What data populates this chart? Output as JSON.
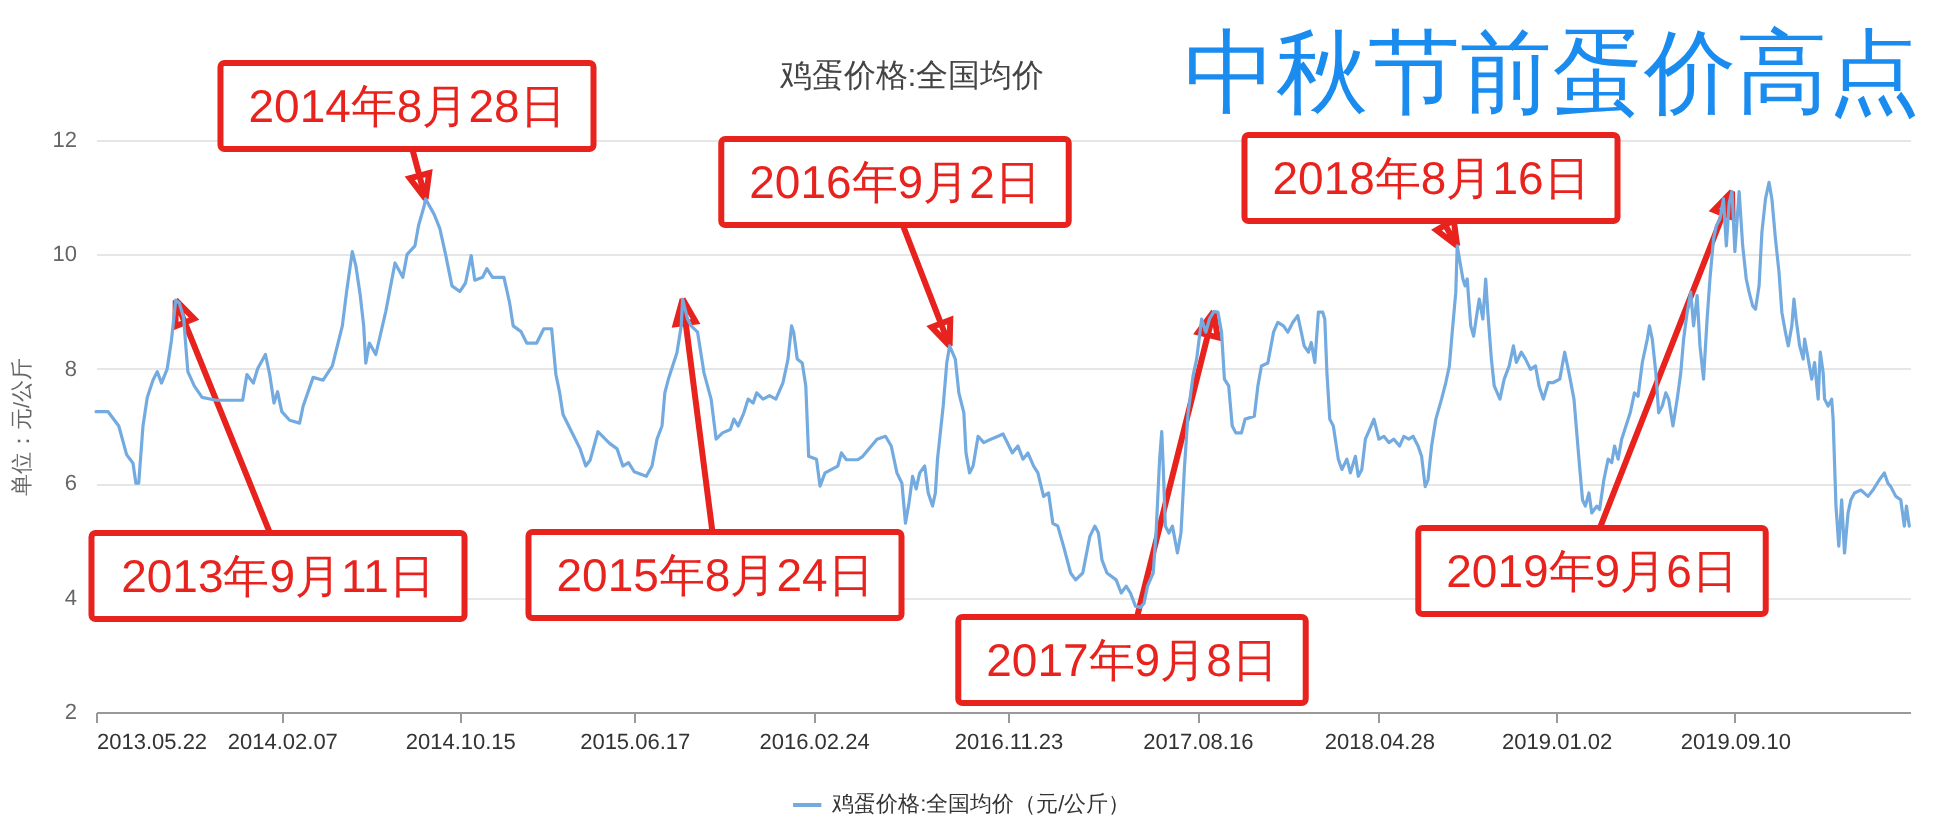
{
  "chart_data": {
    "type": "line",
    "title": "鸡蛋价格:全国均价",
    "ylabel": "单位：元/公斤",
    "legend": "bottom",
    "grid": "y",
    "xlim": [
      "2013-05-22",
      "2020-05-13"
    ],
    "xticks": [
      {
        "value": "2013-05-22",
        "label": "2013.05.22"
      },
      {
        "value": "2014-02-07",
        "label": "2014.02.07"
      },
      {
        "value": "2014-10-15",
        "label": "2014.10.15"
      },
      {
        "value": "2015-06-17",
        "label": "2015.06.17"
      },
      {
        "value": "2016-02-24",
        "label": "2016.02.24"
      },
      {
        "value": "2016-11-23",
        "label": "2016.11.23"
      },
      {
        "value": "2017-08-16",
        "label": "2017.08.16"
      },
      {
        "value": "2018-04-28",
        "label": "2018.04.28"
      },
      {
        "value": "2019-01-02",
        "label": "2019.01.02"
      },
      {
        "value": "2019-09-10",
        "label": "2019.09.10"
      }
    ],
    "ylim": [
      2,
      12
    ],
    "yticks": [
      2,
      4,
      6,
      8,
      10,
      12
    ],
    "series": [
      {
        "name": "鸡蛋价格:全国均价（元/公斤）",
        "color": "#73abe0",
        "x": [
          "2013-05-22",
          "2013-06-08",
          "2013-06-23",
          "2013-07-04",
          "2013-07-13",
          "2013-07-17",
          "2013-07-21",
          "2013-07-27",
          "2013-08-02",
          "2013-08-10",
          "2013-08-16",
          "2013-08-22",
          "2013-08-30",
          "2013-09-05",
          "2013-09-11",
          "2013-09-16",
          "2013-09-22",
          "2013-09-28",
          "2013-10-07",
          "2013-10-18",
          "2013-11-07",
          "2013-12-14",
          "2013-12-20",
          "2013-12-29",
          "2014-01-04",
          "2014-01-15",
          "2014-01-21",
          "2014-01-27",
          "2014-02-01",
          "2014-02-07",
          "2014-02-18",
          "2014-03-04",
          "2014-03-09",
          "2014-03-23",
          "2014-04-06",
          "2014-04-19",
          "2014-05-03",
          "2014-05-09",
          "2014-05-17",
          "2014-05-22",
          "2014-05-28",
          "2014-06-02",
          "2014-06-05",
          "2014-06-10",
          "2014-06-19",
          "2014-07-03",
          "2014-07-16",
          "2014-07-27",
          "2014-08-02",
          "2014-08-13",
          "2014-08-18",
          "2014-08-26",
          "2014-08-28",
          "2014-09-09",
          "2014-09-17",
          "2014-09-25",
          "2014-10-04",
          "2014-10-15",
          "2014-10-23",
          "2014-10-31",
          "2014-11-05",
          "2014-11-16",
          "2014-11-22",
          "2014-11-30",
          "2014-12-16",
          "2014-12-24",
          "2014-12-29",
          "2015-01-09",
          "2015-01-17",
          "2015-01-31",
          "2015-02-10",
          "2015-02-21",
          "2015-02-27",
          "2015-03-04",
          "2015-03-09",
          "2015-03-17",
          "2015-04-02",
          "2015-04-10",
          "2015-04-16",
          "2015-04-27",
          "2015-05-13",
          "2015-05-24",
          "2015-06-01",
          "2015-06-09",
          "2015-06-17",
          "2015-07-04",
          "2015-07-12",
          "2015-07-19",
          "2015-07-26",
          "2015-07-30",
          "2015-08-04",
          "2015-08-16",
          "2015-08-22",
          "2015-08-24",
          "2015-08-31",
          "2015-09-05",
          "2015-09-14",
          "2015-09-23",
          "2015-10-03",
          "2015-10-10",
          "2015-10-19",
          "2015-10-30",
          "2015-11-04",
          "2015-11-10",
          "2015-11-18",
          "2015-11-24",
          "2015-12-01",
          "2015-12-06",
          "2015-12-15",
          "2015-12-24",
          "2016-01-02",
          "2016-01-12",
          "2016-01-19",
          "2016-01-24",
          "2016-01-27",
          "2016-02-01",
          "2016-02-08",
          "2016-02-13",
          "2016-02-17",
          "2016-02-28",
          "2016-03-04",
          "2016-03-11",
          "2016-03-29",
          "2016-04-03",
          "2016-04-10",
          "2016-04-26",
          "2016-05-03",
          "2016-05-23",
          "2016-06-04",
          "2016-06-12",
          "2016-06-20",
          "2016-06-27",
          "2016-07-02",
          "2016-07-07",
          "2016-07-12",
          "2016-07-17",
          "2016-07-22",
          "2016-07-29",
          "2016-08-03",
          "2016-08-09",
          "2016-08-13",
          "2016-08-16",
          "2016-08-24",
          "2016-08-29",
          "2016-09-02",
          "2016-09-10",
          "2016-09-15",
          "2016-09-22",
          "2016-09-25",
          "2016-09-30",
          "2016-10-05",
          "2016-10-12",
          "2016-10-20",
          "2016-10-30",
          "2016-11-09",
          "2016-11-16",
          "2016-11-22",
          "2016-11-29",
          "2016-12-07",
          "2016-12-14",
          "2016-12-21",
          "2016-12-29",
          "2017-01-04",
          "2017-01-12",
          "2017-01-19",
          "2017-01-25",
          "2017-02-01",
          "2017-02-09",
          "2017-02-19",
          "2017-02-26",
          "2017-03-08",
          "2017-03-18",
          "2017-03-25",
          "2017-03-30",
          "2017-04-04",
          "2017-04-11",
          "2017-04-24",
          "2017-05-01",
          "2017-05-08",
          "2017-05-14",
          "2017-05-21",
          "2017-05-28",
          "2017-06-02",
          "2017-06-07",
          "2017-06-15",
          "2017-06-19",
          "2017-06-24",
          "2017-06-27",
          "2017-06-29",
          "2017-07-02",
          "2017-07-07",
          "2017-07-12",
          "2017-07-19",
          "2017-07-24",
          "2017-07-29",
          "2017-08-03",
          "2017-08-10",
          "2017-08-15",
          "2017-08-22",
          "2017-08-28",
          "2017-09-02",
          "2017-09-08",
          "2017-09-14",
          "2017-09-19",
          "2017-09-23",
          "2017-09-29",
          "2017-10-04",
          "2017-10-09",
          "2017-10-17",
          "2017-10-22",
          "2017-11-04",
          "2017-11-09",
          "2017-11-14",
          "2017-11-23",
          "2017-12-01",
          "2017-12-07",
          "2017-12-15",
          "2017-12-21",
          "2017-12-28",
          "2018-01-04",
          "2018-01-09",
          "2018-01-13",
          "2018-01-19",
          "2018-01-23",
          "2018-01-28",
          "2018-02-02",
          "2018-02-08",
          "2018-02-11",
          "2018-02-14",
          "2018-02-18",
          "2018-02-23",
          "2018-03-02",
          "2018-03-07",
          "2018-03-14",
          "2018-03-19",
          "2018-03-26",
          "2018-03-30",
          "2018-04-04",
          "2018-04-09",
          "2018-04-15",
          "2018-04-21",
          "2018-04-28",
          "2018-05-05",
          "2018-05-12",
          "2018-05-19",
          "2018-05-27",
          "2018-06-02",
          "2018-06-09",
          "2018-06-15",
          "2018-06-22",
          "2018-06-27",
          "2018-07-02",
          "2018-07-06",
          "2018-07-11",
          "2018-07-17",
          "2018-07-25",
          "2018-07-31",
          "2018-08-05",
          "2018-08-09",
          "2018-08-14",
          "2018-08-16",
          "2018-08-24",
          "2018-08-27",
          "2018-08-30",
          "2018-09-04",
          "2018-09-08",
          "2018-09-13",
          "2018-09-16",
          "2018-09-21",
          "2018-09-25",
          "2018-09-28",
          "2018-10-03",
          "2018-10-07",
          "2018-10-15",
          "2018-10-21",
          "2018-10-28",
          "2018-11-03",
          "2018-11-07",
          "2018-11-14",
          "2018-11-20",
          "2018-11-27",
          "2018-12-04",
          "2018-12-09",
          "2018-12-15",
          "2018-12-22",
          "2018-12-29",
          "2019-01-07",
          "2019-01-14",
          "2019-01-20",
          "2019-01-27",
          "2019-02-03",
          "2019-02-08",
          "2019-02-12",
          "2019-02-17",
          "2019-02-21",
          "2019-02-28",
          "2019-03-04",
          "2019-03-10",
          "2019-03-16",
          "2019-03-21",
          "2019-03-25",
          "2019-03-30",
          "2019-04-04",
          "2019-04-10",
          "2019-04-16",
          "2019-04-22",
          "2019-04-27",
          "2019-05-03",
          "2019-05-10",
          "2019-05-13",
          "2019-05-17",
          "2019-05-22",
          "2019-05-26",
          "2019-05-31",
          "2019-06-05",
          "2019-06-09",
          "2019-06-15",
          "2019-06-21",
          "2019-06-26",
          "2019-06-30",
          "2019-07-05",
          "2019-07-10",
          "2019-07-14",
          "2019-07-19",
          "2019-07-23",
          "2019-07-28",
          "2019-08-02",
          "2019-08-06",
          "2019-08-11",
          "2019-08-15",
          "2019-08-20",
          "2019-08-25",
          "2019-08-29",
          "2019-09-02",
          "2019-09-06",
          "2019-09-10",
          "2019-09-16",
          "2019-09-21",
          "2019-09-26",
          "2019-09-30",
          "2019-10-05",
          "2019-10-09",
          "2019-10-14",
          "2019-10-18",
          "2019-10-23",
          "2019-10-28",
          "2019-11-01",
          "2019-11-06",
          "2019-11-11",
          "2019-11-15",
          "2019-11-20",
          "2019-11-24",
          "2019-11-29",
          "2019-12-02",
          "2019-12-05",
          "2019-12-10",
          "2019-12-15",
          "2019-12-17",
          "2019-12-22",
          "2019-12-27",
          "2019-12-31",
          "2020-01-05",
          "2020-01-08",
          "2020-01-12",
          "2020-01-14",
          "2020-01-19",
          "2020-01-24",
          "2020-01-26",
          "2020-01-30",
          "2020-02-03",
          "2020-02-07",
          "2020-02-11",
          "2020-02-16",
          "2020-02-20",
          "2020-02-25",
          "2020-03-05",
          "2020-03-15",
          "2020-03-23",
          "2020-03-31",
          "2020-04-07",
          "2020-04-12",
          "2020-04-16",
          "2020-04-23",
          "2020-04-30",
          "2020-05-05",
          "2020-05-08",
          "2020-05-12"
        ],
        "values": [
          7.25,
          7.25,
          7.0,
          6.5,
          6.35,
          6.0,
          6.0,
          7.0,
          7.5,
          7.8,
          7.95,
          7.75,
          8.0,
          8.5,
          9.2,
          9.15,
          8.9,
          7.95,
          7.7,
          7.5,
          7.45,
          7.45,
          7.9,
          7.75,
          8.0,
          8.25,
          7.9,
          7.4,
          7.6,
          7.25,
          7.1,
          7.05,
          7.35,
          7.85,
          7.8,
          8.05,
          8.75,
          9.35,
          10.05,
          9.8,
          9.3,
          8.75,
          8.1,
          8.45,
          8.25,
          9.0,
          9.85,
          9.6,
          10.0,
          10.15,
          10.5,
          10.85,
          10.97,
          10.7,
          10.45,
          10.0,
          9.45,
          9.35,
          9.5,
          9.98,
          9.55,
          9.6,
          9.75,
          9.6,
          9.6,
          9.15,
          8.75,
          8.65,
          8.45,
          8.45,
          8.7,
          8.7,
          7.9,
          7.6,
          7.2,
          7.0,
          6.6,
          6.3,
          6.4,
          6.9,
          6.7,
          6.6,
          6.3,
          6.36,
          6.2,
          6.12,
          6.3,
          6.77,
          7.0,
          7.58,
          7.82,
          8.28,
          8.75,
          9.22,
          8.87,
          8.75,
          8.64,
          7.93,
          7.47,
          6.77,
          6.88,
          6.94,
          7.12,
          7.0,
          7.23,
          7.47,
          7.4,
          7.58,
          7.47,
          7.53,
          7.47,
          7.76,
          8.17,
          8.75,
          8.64,
          8.17,
          8.1,
          7.7,
          6.47,
          6.42,
          5.95,
          6.18,
          6.3,
          6.53,
          6.41,
          6.41,
          6.47,
          6.77,
          6.82,
          6.65,
          6.18,
          6.0,
          5.3,
          5.66,
          6.12,
          5.9,
          6.18,
          6.3,
          5.83,
          5.6,
          5.83,
          6.42,
          7.35,
          8.1,
          8.4,
          8.17,
          7.58,
          7.23,
          6.53,
          6.18,
          6.3,
          6.82,
          6.71,
          6.77,
          6.82,
          6.86,
          6.71,
          6.53,
          6.65,
          6.42,
          6.53,
          6.3,
          6.18,
          5.77,
          5.83,
          5.3,
          5.25,
          4.9,
          4.43,
          4.31,
          4.43,
          5.07,
          5.25,
          5.13,
          4.66,
          4.43,
          4.31,
          4.08,
          4.2,
          4.08,
          3.85,
          3.83,
          3.9,
          4.2,
          4.43,
          5.13,
          6.42,
          6.9,
          6.3,
          5.25,
          5.13,
          5.25,
          4.78,
          5.13,
          6.3,
          7.23,
          7.88,
          8.17,
          8.87,
          8.64,
          8.87,
          9.0,
          8.99,
          8.64,
          7.82,
          7.7,
          7.0,
          6.88,
          6.88,
          7.12,
          7.17,
          7.7,
          8.05,
          8.1,
          8.64,
          8.81,
          8.75,
          8.64,
          8.81,
          8.93,
          8.64,
          8.4,
          8.29,
          8.46,
          8.11,
          8.99,
          8.99,
          8.87,
          7.93,
          7.12,
          7.0,
          6.42,
          6.24,
          6.42,
          6.18,
          6.47,
          6.12,
          6.24,
          6.77,
          6.94,
          7.12,
          6.77,
          6.82,
          6.71,
          6.77,
          6.65,
          6.82,
          6.77,
          6.82,
          6.65,
          6.47,
          5.94,
          6.06,
          6.65,
          7.12,
          7.47,
          7.76,
          8.05,
          8.64,
          9.34,
          10.15,
          9.57,
          9.45,
          9.57,
          8.75,
          8.57,
          8.99,
          9.22,
          8.87,
          9.57,
          8.99,
          8.17,
          7.7,
          7.47,
          7.82,
          8.05,
          8.4,
          8.11,
          8.29,
          8.17,
          7.99,
          8.05,
          7.7,
          7.47,
          7.76,
          7.76,
          7.82,
          8.29,
          7.93,
          7.47,
          6.42,
          5.71,
          5.6,
          5.83,
          5.48,
          5.6,
          5.54,
          6.06,
          6.42,
          6.36,
          6.65,
          6.42,
          6.77,
          7.0,
          7.23,
          7.58,
          7.52,
          8.11,
          8.52,
          8.75,
          8.52,
          7.93,
          7.23,
          7.35,
          7.58,
          7.47,
          7.0,
          7.47,
          7.93,
          8.52,
          8.99,
          9.34,
          8.75,
          9.28,
          8.4,
          7.82,
          8.87,
          9.57,
          10.27,
          10.5,
          10.62,
          10.97,
          10.15,
          10.9,
          11.1,
          10.05,
          11.1,
          10.15,
          9.57,
          9.34,
          9.1,
          9.04,
          9.45,
          10.39,
          10.97,
          11.26,
          10.97,
          10.27,
          9.69,
          8.99,
          8.64,
          8.4,
          8.75,
          9.22,
          8.87,
          8.4,
          8.17,
          8.52,
          8.17,
          7.82,
          8.11,
          7.47,
          8.29,
          7.93,
          7.47,
          7.35,
          7.47,
          7.12,
          5.6,
          4.9,
          5.71,
          4.78,
          5.48,
          5.71,
          5.83,
          5.88,
          5.77,
          5.9,
          6.06,
          6.18,
          6.0,
          5.94,
          5.77,
          5.71,
          5.25,
          5.6,
          5.25
        ]
      }
    ],
    "annotations": [
      "中秋节前蛋价高点",
      {
        "text": "2013年9月11日",
        "x": "2013-09-11",
        "y": 9.2
      },
      {
        "text": "2014年8月28日",
        "x": "2014-08-28",
        "y": 10.97
      },
      {
        "text": "2015年8月24日",
        "x": "2015-08-24",
        "y": 9.22
      },
      {
        "text": "2016年9月2日",
        "x": "2016-09-02",
        "y": 8.4
      },
      {
        "text": "2017年9月8日",
        "x": "2017-09-08",
        "y": 9.0
      },
      {
        "text": "2018年8月16日",
        "x": "2018-08-16",
        "y": 10.15
      },
      {
        "text": "2019年9月6日",
        "x": "2019-09-06",
        "y": 11.1
      }
    ]
  }
}
